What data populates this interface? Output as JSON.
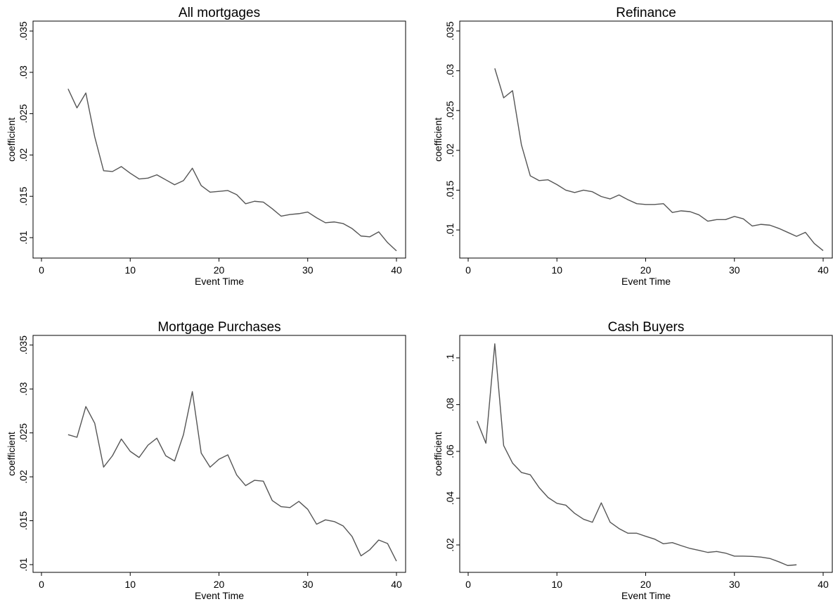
{
  "chart_data": [
    {
      "type": "line",
      "title": "All mortgages",
      "x_label": "Event Time",
      "y_label": "coefficient",
      "color": "#555555",
      "x": [
        3,
        4,
        5,
        6,
        7,
        8,
        9,
        10,
        11,
        12,
        13,
        14,
        15,
        16,
        17,
        18,
        19,
        20,
        21,
        22,
        23,
        24,
        25,
        26,
        27,
        28,
        29,
        30,
        31,
        32,
        33,
        34,
        35,
        36,
        37,
        38,
        39,
        40
      ],
      "values": [
        0.028,
        0.0257,
        0.0275,
        0.0222,
        0.0181,
        0.018,
        0.0186,
        0.0178,
        0.0171,
        0.0172,
        0.0176,
        0.017,
        0.0164,
        0.0169,
        0.0184,
        0.0163,
        0.0155,
        0.0156,
        0.0157,
        0.0152,
        0.0141,
        0.0144,
        0.0143,
        0.0135,
        0.0126,
        0.0128,
        0.0129,
        0.0131,
        0.0124,
        0.0118,
        0.0119,
        0.0117,
        0.0111,
        0.0102,
        0.0101,
        0.0107,
        0.0094,
        0.0084
      ],
      "xlim": [
        -0.95,
        41.03
      ],
      "xticks": [
        0,
        10,
        20,
        30,
        40
      ],
      "ylim": [
        0.00753,
        0.0362
      ],
      "yticks": [
        {
          "value": 0.01,
          "label": ".01"
        },
        {
          "value": 0.015,
          "label": ".015"
        },
        {
          "value": 0.02,
          "label": ".02"
        },
        {
          "value": 0.025,
          "label": ".025"
        },
        {
          "value": 0.03,
          "label": ".03"
        },
        {
          "value": 0.035,
          "label": ".035"
        }
      ]
    },
    {
      "type": "line",
      "title": "Refinance",
      "x_label": "Event Time",
      "y_label": "coefficient",
      "color": "#555555",
      "x": [
        3,
        4,
        5,
        6,
        7,
        8,
        9,
        10,
        11,
        12,
        13,
        14,
        15,
        16,
        17,
        18,
        19,
        20,
        21,
        22,
        23,
        24,
        25,
        26,
        27,
        28,
        29,
        30,
        31,
        32,
        33,
        34,
        35,
        36,
        37,
        38,
        39,
        40
      ],
      "values": [
        0.0303,
        0.0266,
        0.0275,
        0.0207,
        0.0168,
        0.0162,
        0.0163,
        0.0157,
        0.015,
        0.0147,
        0.015,
        0.0148,
        0.0142,
        0.0139,
        0.0144,
        0.0138,
        0.0133,
        0.0132,
        0.0132,
        0.0133,
        0.0122,
        0.0124,
        0.0123,
        0.0119,
        0.0111,
        0.0113,
        0.0113,
        0.0117,
        0.0114,
        0.0105,
        0.0107,
        0.0106,
        0.0102,
        0.0097,
        0.0092,
        0.0097,
        0.0083,
        0.0074
      ],
      "xlim": [
        -0.95,
        41.03
      ],
      "xticks": [
        0,
        10,
        20,
        30,
        40
      ],
      "ylim": [
        0.00647,
        0.03624
      ],
      "yticks": [
        {
          "value": 0.01,
          "label": ".01"
        },
        {
          "value": 0.015,
          "label": ".015"
        },
        {
          "value": 0.02,
          "label": ".02"
        },
        {
          "value": 0.025,
          "label": ".025"
        },
        {
          "value": 0.03,
          "label": ".03"
        },
        {
          "value": 0.035,
          "label": ".035"
        }
      ]
    },
    {
      "type": "line",
      "title": "Mortgage Purchases",
      "x_label": "Event Time",
      "y_label": "coefficient",
      "color": "#555555",
      "x": [
        3,
        4,
        5,
        6,
        7,
        8,
        9,
        10,
        11,
        12,
        13,
        14,
        15,
        16,
        17,
        18,
        19,
        20,
        21,
        22,
        23,
        24,
        25,
        26,
        27,
        28,
        29,
        30,
        31,
        32,
        33,
        34,
        35,
        36,
        37,
        38,
        39,
        40
      ],
      "values": [
        0.0248,
        0.0245,
        0.028,
        0.0261,
        0.0211,
        0.0224,
        0.0243,
        0.0229,
        0.0222,
        0.0236,
        0.0244,
        0.0224,
        0.0218,
        0.0248,
        0.0297,
        0.0227,
        0.0211,
        0.022,
        0.0225,
        0.0202,
        0.019,
        0.0196,
        0.0195,
        0.0173,
        0.0166,
        0.0165,
        0.0172,
        0.0163,
        0.0146,
        0.0151,
        0.0149,
        0.0144,
        0.0132,
        0.011,
        0.0117,
        0.0128,
        0.0124,
        0.0104
      ],
      "xlim": [
        -0.95,
        41.03
      ],
      "xticks": [
        0,
        10,
        20,
        30,
        40
      ],
      "ylim": [
        0.00912,
        0.0361
      ],
      "yticks": [
        {
          "value": 0.01,
          "label": ".01"
        },
        {
          "value": 0.015,
          "label": ".015"
        },
        {
          "value": 0.02,
          "label": ".02"
        },
        {
          "value": 0.025,
          "label": ".025"
        },
        {
          "value": 0.03,
          "label": ".03"
        },
        {
          "value": 0.035,
          "label": ".035"
        }
      ]
    },
    {
      "type": "line",
      "title": "Cash Buyers",
      "x_label": "Event Time",
      "y_label": "coefficient",
      "color": "#555555",
      "x": [
        1,
        2,
        3,
        4,
        5,
        6,
        7,
        8,
        9,
        10,
        11,
        12,
        13,
        14,
        15,
        16,
        17,
        18,
        19,
        20,
        21,
        22,
        23,
        24,
        25,
        26,
        27,
        28,
        29,
        30,
        31,
        32,
        33,
        34,
        35,
        36,
        37
      ],
      "values": [
        0.073,
        0.0635,
        0.106,
        0.0625,
        0.055,
        0.051,
        0.05,
        0.0445,
        0.0403,
        0.0378,
        0.037,
        0.0335,
        0.031,
        0.0297,
        0.038,
        0.0297,
        0.027,
        0.025,
        0.025,
        0.0237,
        0.0225,
        0.0205,
        0.021,
        0.0197,
        0.0185,
        0.0177,
        0.0168,
        0.0172,
        0.0165,
        0.0152,
        0.0152,
        0.0151,
        0.0148,
        0.0142,
        0.0128,
        0.0112,
        0.0115
      ],
      "xlim": [
        -0.95,
        41.03
      ],
      "xticks": [
        0,
        10,
        20,
        30,
        40
      ],
      "ylim": [
        0.00827,
        0.1096
      ],
      "yticks": [
        {
          "value": 0.02,
          "label": ".02"
        },
        {
          "value": 0.04,
          "label": ".04"
        },
        {
          "value": 0.06,
          "label": ".06"
        },
        {
          "value": 0.08,
          "label": ".08"
        },
        {
          "value": 0.1,
          "label": ".1"
        }
      ]
    }
  ]
}
